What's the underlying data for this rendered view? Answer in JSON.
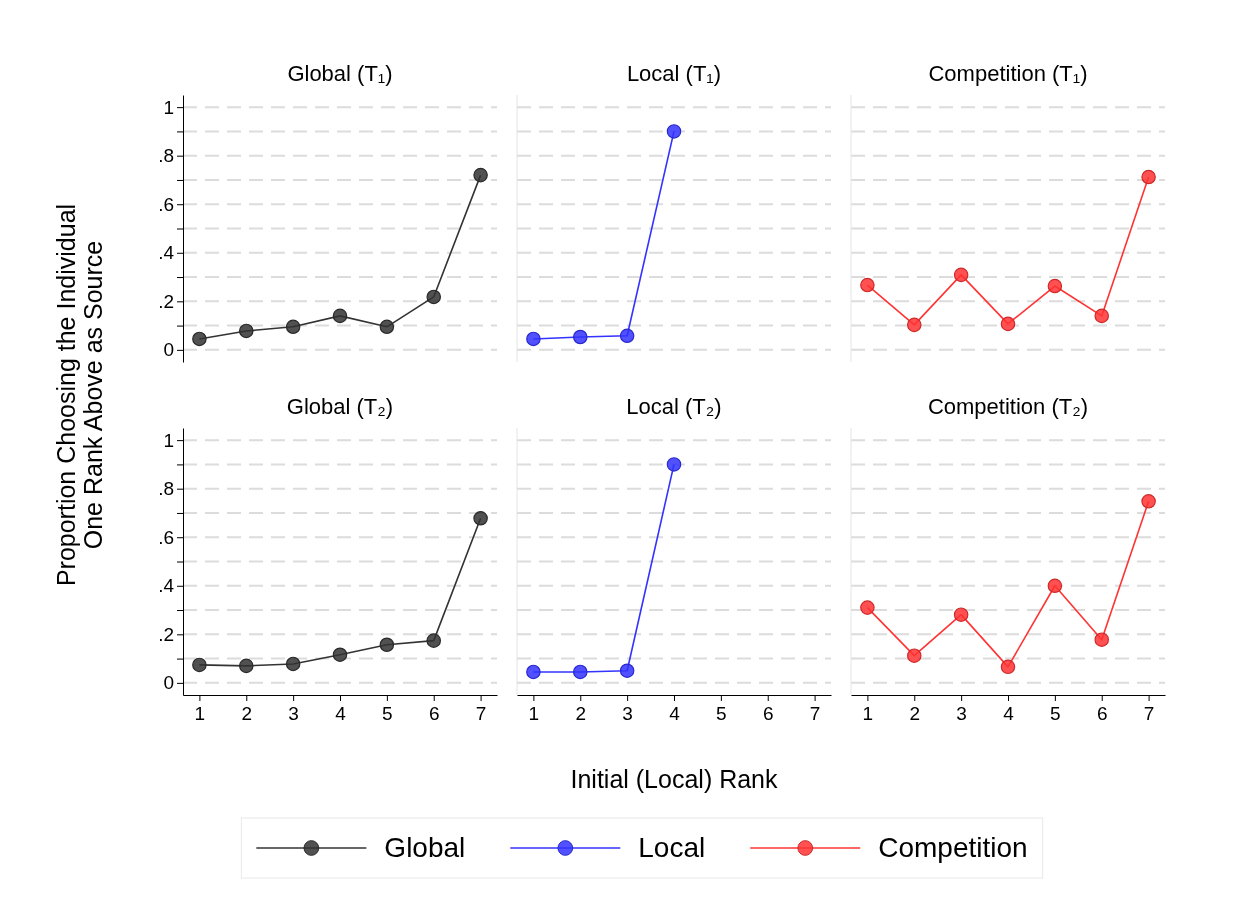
{
  "chart_data": [
    {
      "type": "line",
      "title": "Global (T₁)",
      "ylabel": "Proportion Choosing the Individual\nOne Rank Above as Source",
      "x": [
        1,
        2,
        3,
        4,
        5,
        6,
        7
      ],
      "xlim": [
        0.65,
        7.35
      ],
      "ylim": [
        -0.05,
        1.05
      ],
      "yticks": [
        0,
        {
          "value": 0.1,
          "label": null
        },
        {
          "value": 0.2,
          "label": ".2"
        },
        {
          "value": 0.3,
          "label": null
        },
        {
          "value": 0.4,
          "label": ".4"
        },
        {
          "value": 0.5,
          "label": null
        },
        {
          "value": 0.6,
          "label": ".6"
        },
        {
          "value": 0.7,
          "label": null
        },
        {
          "value": 0.8,
          "label": ".8"
        },
        {
          "value": 0.9,
          "label": null
        },
        1
      ],
      "grid": "y",
      "tick_labels": "y",
      "marker": "circle",
      "line_style": "solid",
      "series": [
        {
          "color": "#333333",
          "values": [
            0.045,
            0.078,
            0.095,
            0.14,
            0.095,
            0.218,
            0.72
          ]
        }
      ]
    },
    {
      "type": "line",
      "title": "Local (T₁)",
      "x": [
        1,
        2,
        3,
        4
      ],
      "xlim": [
        0.65,
        7.35
      ],
      "ylim": [
        -0.05,
        1.05
      ],
      "yticks": [
        0,
        0.1,
        0.2,
        0.3,
        0.4,
        0.5,
        0.6,
        0.7,
        0.8,
        0.9,
        1
      ],
      "grid": "y",
      "tick_labels": false,
      "marker": "circle",
      "line_style": "solid",
      "series": [
        {
          "color": "#3333ff",
          "values": [
            0.045,
            0.053,
            0.058,
            0.9
          ]
        }
      ]
    },
    {
      "type": "line",
      "title": "Competition (T₁)",
      "x": [
        1,
        2,
        3,
        4,
        5,
        6,
        7
      ],
      "xlim": [
        0.65,
        7.35
      ],
      "ylim": [
        -0.05,
        1.05
      ],
      "yticks": [
        0,
        0.1,
        0.2,
        0.3,
        0.4,
        0.5,
        0.6,
        0.7,
        0.8,
        0.9,
        1
      ],
      "grid": "y",
      "tick_labels": false,
      "marker": "circle",
      "line_style": "solid",
      "series": [
        {
          "color": "#ff3333",
          "values": [
            0.267,
            0.103,
            0.309,
            0.107,
            0.263,
            0.14,
            0.712
          ]
        }
      ]
    },
    {
      "type": "line",
      "title": "Global (T₂)",
      "x": [
        1,
        2,
        3,
        4,
        5,
        6,
        7
      ],
      "xlim": [
        0.65,
        7.35
      ],
      "xticks": [
        1,
        2,
        3,
        4,
        5,
        6,
        7
      ],
      "ylim": [
        -0.05,
        1.05
      ],
      "yticks": [
        0,
        {
          "value": 0.1,
          "label": null
        },
        {
          "value": 0.2,
          "label": ".2"
        },
        {
          "value": 0.3,
          "label": null
        },
        {
          "value": 0.4,
          "label": ".4"
        },
        {
          "value": 0.5,
          "label": null
        },
        {
          "value": 0.6,
          "label": ".6"
        },
        {
          "value": 0.7,
          "label": null
        },
        {
          "value": 0.8,
          "label": ".8"
        },
        {
          "value": 0.9,
          "label": null
        },
        1
      ],
      "grid": "y",
      "marker": "circle",
      "line_style": "solid",
      "legend": "bottom",
      "series": [
        {
          "name": "Global",
          "color": "#333333",
          "values": [
            0.074,
            0.07,
            0.078,
            0.116,
            0.157,
            0.174,
            0.678
          ]
        }
      ]
    },
    {
      "type": "line",
      "title": "Local (T₂)",
      "xlabel": "Initial (Local) Rank",
      "x": [
        1,
        2,
        3,
        4
      ],
      "xlim": [
        0.65,
        7.35
      ],
      "xticks": [
        1,
        2,
        3,
        4,
        5,
        6,
        7
      ],
      "ylim": [
        -0.05,
        1.05
      ],
      "yticks": [
        0,
        0.1,
        0.2,
        0.3,
        0.4,
        0.5,
        0.6,
        0.7,
        0.8,
        0.9,
        1
      ],
      "grid": "y",
      "tick_labels": "x",
      "marker": "circle",
      "line_style": "solid",
      "legend": "bottom",
      "series": [
        {
          "name": "Local",
          "color": "#3333ff",
          "values": [
            0.045,
            0.045,
            0.05,
            0.9
          ]
        }
      ]
    },
    {
      "type": "line",
      "title": "Competition (T₂)",
      "x": [
        1,
        2,
        3,
        4,
        5,
        6,
        7
      ],
      "xlim": [
        0.65,
        7.35
      ],
      "xticks": [
        1,
        2,
        3,
        4,
        5,
        6,
        7
      ],
      "ylim": [
        -0.05,
        1.05
      ],
      "yticks": [
        0,
        0.1,
        0.2,
        0.3,
        0.4,
        0.5,
        0.6,
        0.7,
        0.8,
        0.9,
        1
      ],
      "grid": "y",
      "tick_labels": "x",
      "marker": "circle",
      "line_style": "solid",
      "legend": "bottom",
      "series": [
        {
          "name": "Competition",
          "color": "#ff3333",
          "values": [
            0.31,
            0.112,
            0.281,
            0.066,
            0.4,
            0.178,
            0.748
          ]
        }
      ]
    }
  ]
}
